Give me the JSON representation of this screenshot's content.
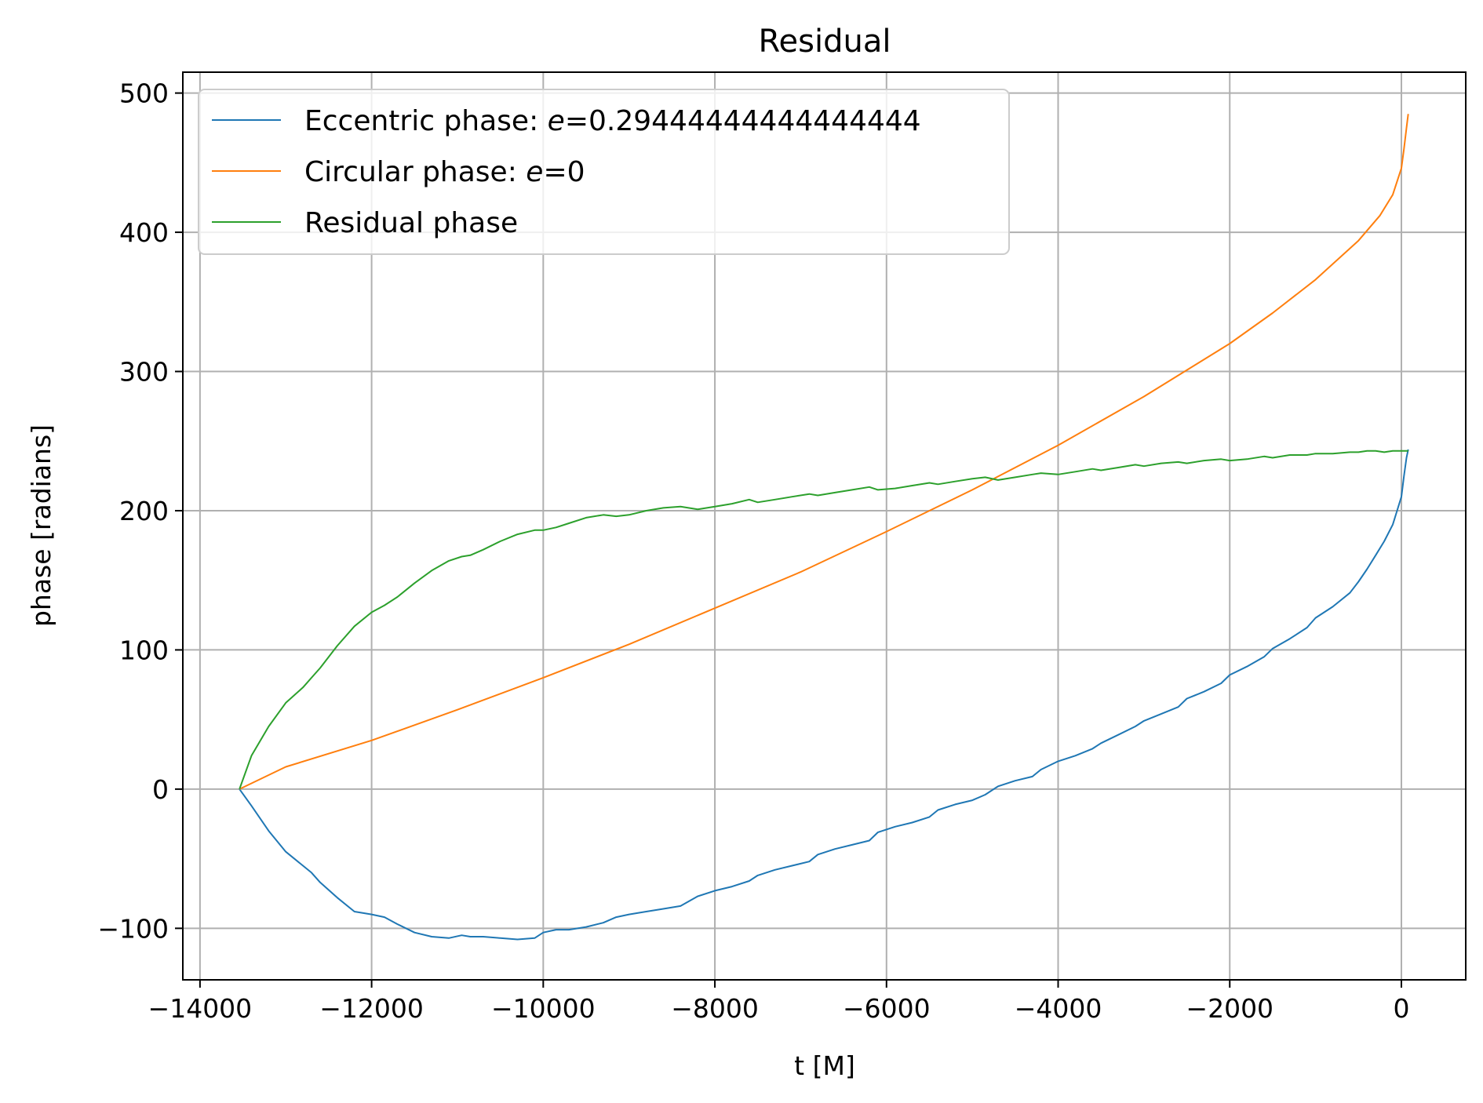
{
  "chart_data": {
    "type": "line",
    "title": "Residual",
    "xlabel": "t [M]",
    "ylabel": "phase [radians]",
    "xlim": [
      -14200,
      750
    ],
    "ylim": [
      -137,
      515
    ],
    "xticks": [
      -14000,
      -12000,
      -10000,
      -8000,
      -6000,
      -4000,
      -2000,
      0
    ],
    "yticks": [
      -100,
      0,
      100,
      200,
      300,
      400,
      500
    ],
    "xtick_labels": [
      "−14000",
      "−12000",
      "−10000",
      "−8000",
      "−6000",
      "−4000",
      "−2000",
      "0"
    ],
    "ytick_labels": [
      "−100",
      "0",
      "100",
      "200",
      "300",
      "400",
      "500"
    ],
    "grid": true,
    "legend_position": "top-left",
    "series": [
      {
        "name": "Eccentric phase: e=0.29444444444444444",
        "label_prefix": "Eccentric phase: ",
        "label_var": "e",
        "label_value": "=0.29444444444444444",
        "color": "#1f77b4",
        "x": [
          -13540,
          -13400,
          -13200,
          -13000,
          -12800,
          -12700,
          -12600,
          -12400,
          -12200,
          -12000,
          -11850,
          -11700,
          -11500,
          -11300,
          -11100,
          -10950,
          -10850,
          -10700,
          -10500,
          -10300,
          -10100,
          -10000,
          -9850,
          -9700,
          -9500,
          -9300,
          -9150,
          -9000,
          -8800,
          -8600,
          -8400,
          -8200,
          -8000,
          -7800,
          -7600,
          -7500,
          -7300,
          -7100,
          -6900,
          -6800,
          -6600,
          -6400,
          -6200,
          -6100,
          -5900,
          -5700,
          -5500,
          -5400,
          -5200,
          -5000,
          -4850,
          -4700,
          -4500,
          -4300,
          -4200,
          -4000,
          -3800,
          -3600,
          -3500,
          -3300,
          -3100,
          -3000,
          -2800,
          -2600,
          -2500,
          -2300,
          -2100,
          -2000,
          -1800,
          -1600,
          -1500,
          -1300,
          -1100,
          -1000,
          -800,
          -600,
          -500,
          -400,
          -300,
          -200,
          -100,
          -50,
          0,
          30,
          60,
          80
        ],
        "y": [
          0,
          -12,
          -30,
          -45,
          -55,
          -60,
          -67,
          -78,
          -88,
          -90,
          -92,
          -97,
          -103,
          -106,
          -107,
          -105,
          -106,
          -106,
          -107,
          -108,
          -107,
          -103,
          -101,
          -101,
          -99,
          -96,
          -92,
          -90,
          -88,
          -86,
          -84,
          -77,
          -73,
          -70,
          -66,
          -62,
          -58,
          -55,
          -52,
          -47,
          -43,
          -40,
          -37,
          -31,
          -27,
          -24,
          -20,
          -15,
          -11,
          -8,
          -4,
          2,
          6,
          9,
          14,
          20,
          24,
          29,
          33,
          39,
          45,
          49,
          54,
          59,
          65,
          70,
          76,
          82,
          88,
          95,
          101,
          108,
          116,
          123,
          131,
          141,
          149,
          158,
          168,
          178,
          190,
          200,
          210,
          225,
          238,
          244
        ]
      },
      {
        "name": "Circular phase: e=0",
        "label_prefix": "Circular phase: ",
        "label_var": "e",
        "label_value": "=0",
        "color": "#ff7f0e",
        "x": [
          -13540,
          -13000,
          -12000,
          -11000,
          -10000,
          -9000,
          -8000,
          -7000,
          -6000,
          -5000,
          -4000,
          -3000,
          -2000,
          -1500,
          -1000,
          -500,
          -250,
          -100,
          0,
          30,
          60,
          80
        ],
        "y": [
          0,
          16,
          35,
          57,
          80,
          104,
          130,
          156,
          185,
          215,
          247,
          282,
          320,
          342,
          366,
          394,
          412,
          427,
          446,
          460,
          475,
          485
        ]
      },
      {
        "name": "Residual phase",
        "label_prefix": "Residual phase",
        "label_var": "",
        "label_value": "",
        "color": "#2ca02c",
        "x": [
          -13540,
          -13400,
          -13200,
          -13000,
          -12800,
          -12700,
          -12600,
          -12400,
          -12200,
          -12000,
          -11850,
          -11700,
          -11500,
          -11300,
          -11100,
          -10950,
          -10850,
          -10700,
          -10500,
          -10300,
          -10100,
          -10000,
          -9850,
          -9700,
          -9500,
          -9300,
          -9150,
          -9000,
          -8800,
          -8600,
          -8400,
          -8200,
          -8000,
          -7800,
          -7600,
          -7500,
          -7300,
          -7100,
          -6900,
          -6800,
          -6600,
          -6400,
          -6200,
          -6100,
          -5900,
          -5700,
          -5500,
          -5400,
          -5200,
          -5000,
          -4850,
          -4700,
          -4500,
          -4300,
          -4200,
          -4000,
          -3800,
          -3600,
          -3500,
          -3300,
          -3100,
          -3000,
          -2800,
          -2600,
          -2500,
          -2300,
          -2100,
          -2000,
          -1800,
          -1600,
          -1500,
          -1300,
          -1100,
          -1000,
          -800,
          -600,
          -500,
          -400,
          -300,
          -200,
          -100,
          -50,
          0,
          30,
          60,
          80
        ],
        "y": [
          0,
          24,
          45,
          62,
          73,
          80,
          87,
          103,
          117,
          127,
          132,
          138,
          148,
          157,
          164,
          167,
          168,
          172,
          178,
          183,
          186,
          186,
          188,
          191,
          195,
          197,
          196,
          197,
          200,
          202,
          203,
          201,
          203,
          205,
          208,
          206,
          208,
          210,
          212,
          211,
          213,
          215,
          217,
          215,
          216,
          218,
          220,
          219,
          221,
          223,
          224,
          222,
          224,
          226,
          227,
          226,
          228,
          230,
          229,
          231,
          233,
          232,
          234,
          235,
          234,
          236,
          237,
          236,
          237,
          239,
          238,
          240,
          240,
          241,
          241,
          242,
          242,
          243,
          243,
          242,
          243,
          243,
          243,
          243,
          243,
          243
        ]
      }
    ]
  }
}
